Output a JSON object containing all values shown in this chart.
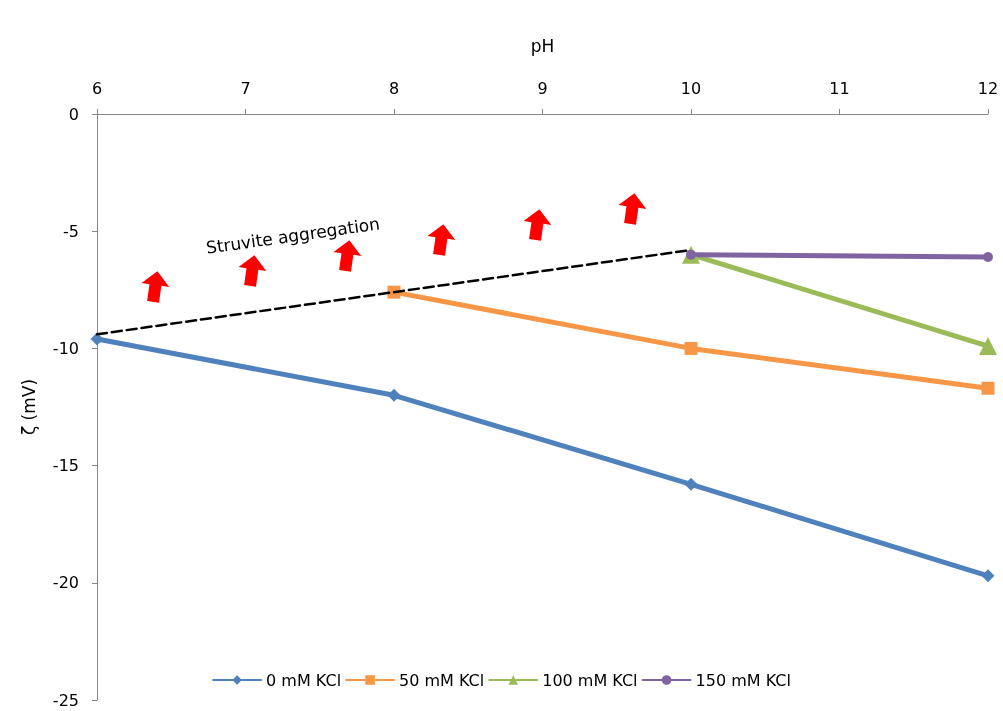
{
  "chart_data": {
    "type": "line",
    "xlabel": "pH",
    "ylabel": "ζ (mV)",
    "x": [
      6,
      8,
      10,
      12
    ],
    "series": [
      {
        "name": "0 mM KCl",
        "color": "#4f81bd",
        "marker": "diamond",
        "values": [
          -9.6,
          -12.0,
          -15.8,
          -19.7
        ]
      },
      {
        "name": "50 mM KCl",
        "color": "#f79646",
        "marker": "square",
        "values": [
          null,
          -7.6,
          -10.0,
          -11.7
        ]
      },
      {
        "name": "100 mM KCl",
        "color": "#9bbb59",
        "marker": "triangle",
        "values": [
          null,
          null,
          -6.0,
          -9.9
        ]
      },
      {
        "name": "150 mM KCl",
        "color": "#8064a2",
        "marker": "circle",
        "values": [
          null,
          null,
          -6.0,
          -6.1
        ]
      },
      {
        "color": "#000000",
        "marker": "none",
        "line_style": "dashed",
        "x": [
          6,
          10
        ],
        "values": [
          -9.4,
          -5.8
        ]
      }
    ],
    "annotations": [
      "Struvite aggregation"
    ],
    "xlim": [
      6,
      12
    ],
    "xticks": [
      6,
      7,
      8,
      9,
      10,
      11,
      12
    ],
    "ylim": [
      -25,
      0
    ],
    "yticks": [
      -25,
      -20,
      -15,
      -10,
      -5,
      0
    ],
    "grid": false,
    "legend": "bottom"
  }
}
